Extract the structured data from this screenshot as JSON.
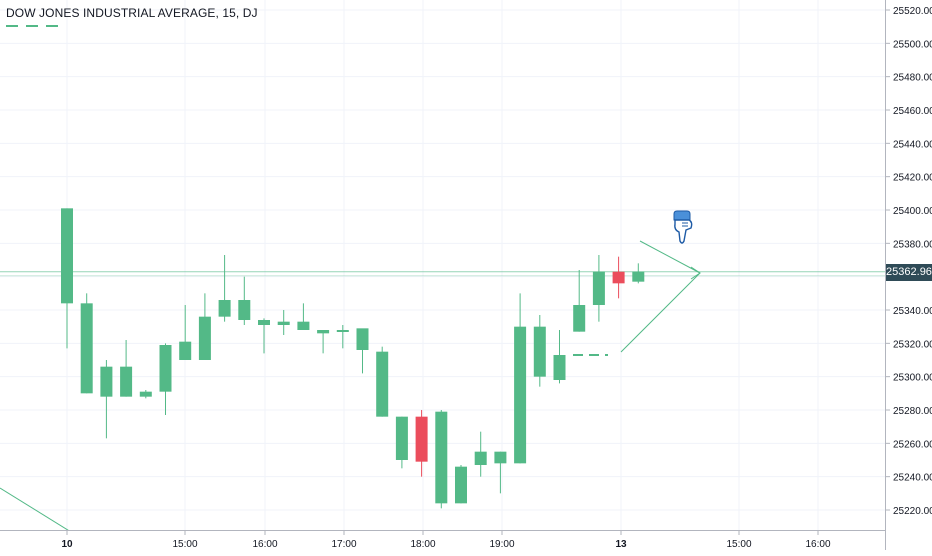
{
  "legend": {
    "title": "DOW JONES INDUSTRIAL AVERAGE, 15, DJ"
  },
  "current_price_label": "25362.96",
  "chart_data": {
    "type": "candlestick",
    "title": "DOW JONES INDUSTRIAL AVERAGE, 15, DJ",
    "ylim": [
      25210,
      25530
    ],
    "y_ticks": [
      25520,
      25500,
      25480,
      25460,
      25440,
      25420,
      25400,
      25380,
      25360,
      25340,
      25320,
      25300,
      25280,
      25260,
      25240,
      25220
    ],
    "y_tick_labels": [
      "25520.00",
      "25500.00",
      "25480.00",
      "25460.00",
      "25440.00",
      "25420.00",
      "25400.00",
      "25380.00",
      "25360.00",
      "25340.00",
      "25320.00",
      "25300.00",
      "25280.00",
      "25260.00",
      "25240.00",
      "25220.00"
    ],
    "x_tick_labels": [
      "10",
      "15:00",
      "16:00",
      "17:00",
      "18:00",
      "19:00",
      "13",
      "15:00",
      "16:00"
    ],
    "current_price": 25362.96,
    "colors": {
      "up": "#53b987",
      "down": "#eb4d5c",
      "grid": "#f0f3fa",
      "line": "#53b987"
    },
    "candles": [
      {
        "o": 25344,
        "h": 25401,
        "l": 25317,
        "c": 25401
      },
      {
        "o": 25290,
        "h": 25350,
        "l": 25290,
        "c": 25344
      },
      {
        "o": 25288,
        "h": 25310,
        "l": 25263,
        "c": 25306
      },
      {
        "o": 25288,
        "h": 25322,
        "l": 25288,
        "c": 25306
      },
      {
        "o": 25288,
        "h": 25292,
        "l": 25287,
        "c": 25291
      },
      {
        "o": 25291,
        "h": 25320,
        "l": 25277,
        "c": 25319
      },
      {
        "o": 25310,
        "h": 25343,
        "l": 25310,
        "c": 25321
      },
      {
        "o": 25310,
        "h": 25350,
        "l": 25310,
        "c": 25336
      },
      {
        "o": 25336,
        "h": 25373,
        "l": 25333,
        "c": 25346
      },
      {
        "o": 25334,
        "h": 25360,
        "l": 25331,
        "c": 25346
      },
      {
        "o": 25331,
        "h": 25335,
        "l": 25314,
        "c": 25334
      },
      {
        "o": 25331,
        "h": 25340,
        "l": 25325,
        "c": 25333
      },
      {
        "o": 25328,
        "h": 25344,
        "l": 25328,
        "c": 25333
      },
      {
        "o": 25326,
        "h": 25328,
        "l": 25314,
        "c": 25328
      },
      {
        "o": 25327,
        "h": 25331,
        "l": 25317,
        "c": 25328
      },
      {
        "o": 25316,
        "h": 25328,
        "l": 25302,
        "c": 25329
      },
      {
        "o": 25276,
        "h": 25318,
        "l": 25276,
        "c": 25315
      },
      {
        "o": 25250,
        "h": 25276,
        "l": 25245,
        "c": 25276
      },
      {
        "o": 25276,
        "h": 25280,
        "l": 25240,
        "c": 25249
      },
      {
        "o": 25224,
        "h": 25280,
        "l": 25221,
        "c": 25279
      },
      {
        "o": 25224,
        "h": 25247,
        "l": 25224,
        "c": 25246
      },
      {
        "o": 25247,
        "h": 25267,
        "l": 25240,
        "c": 25255
      },
      {
        "o": 25248,
        "h": 25255,
        "l": 25230,
        "c": 25255
      },
      {
        "o": 25248,
        "h": 25350,
        "l": 25248,
        "c": 25330
      },
      {
        "o": 25300,
        "h": 25337,
        "l": 25294,
        "c": 25330
      },
      {
        "o": 25298,
        "h": 25328,
        "l": 25296,
        "c": 25313
      },
      {
        "o": 25327,
        "h": 25364,
        "l": 25327,
        "c": 25343
      },
      {
        "o": 25343,
        "h": 25373,
        "l": 25333,
        "c": 25363
      },
      {
        "o": 25363,
        "h": 25372,
        "l": 25347,
        "c": 25356
      },
      {
        "o": 25357,
        "h": 25368,
        "l": 25356,
        "c": 25363
      }
    ]
  }
}
